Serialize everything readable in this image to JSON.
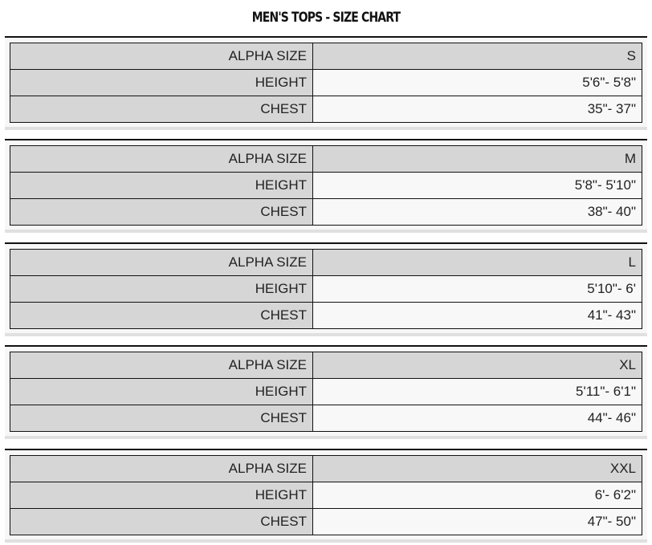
{
  "title": "MEN'S TOPS - SIZE CHART",
  "labels": {
    "alpha": "ALPHA SIZE",
    "height": "HEIGHT",
    "chest": "CHEST"
  },
  "sizes": [
    {
      "alpha": "S",
      "height": "5'6\"- 5'8\"",
      "chest": "35\"- 37\""
    },
    {
      "alpha": "M",
      "height": "5'8\"- 5'10\"",
      "chest": "38\"- 40\""
    },
    {
      "alpha": "L",
      "height": "5'10\"- 6'",
      "chest": "41\"- 43\""
    },
    {
      "alpha": "XL",
      "height": "5'11\"- 6'1\"",
      "chest": "44\"- 46\""
    },
    {
      "alpha": "XXL",
      "height": "6'- 6'2\"",
      "chest": "47\"- 50\""
    }
  ]
}
